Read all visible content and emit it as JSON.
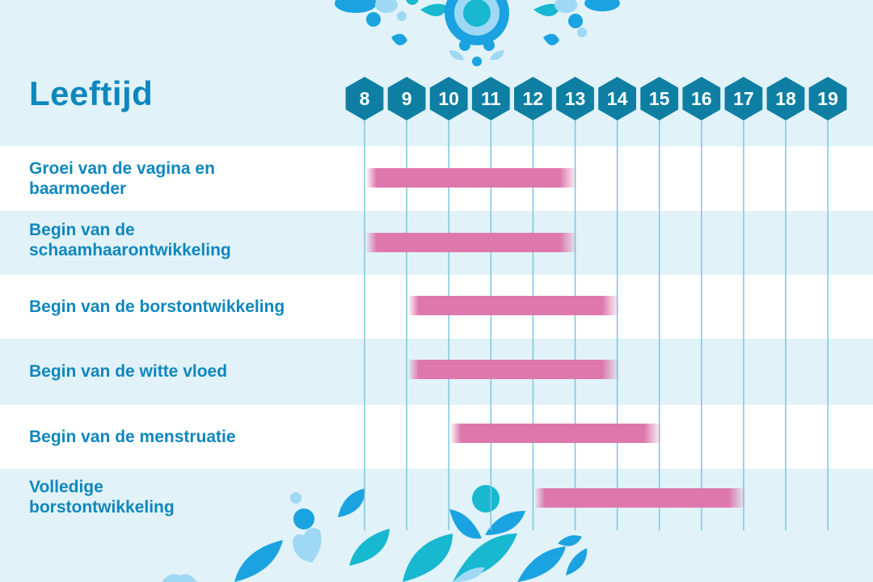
{
  "chart_data": {
    "type": "range-bar",
    "title": "Leeftijd",
    "x_ticks": [
      8,
      9,
      10,
      11,
      12,
      13,
      14,
      15,
      16,
      17,
      18,
      19
    ],
    "xlim": [
      8,
      19
    ],
    "grid": "vertical",
    "bar_color": "#dd77ac",
    "axis_color": "#0e7fa3",
    "rows": [
      {
        "label": "Groei van de vagina en baarmoeder",
        "start": 8,
        "end": 13
      },
      {
        "label": "Begin van de schaamhaarontwikkeling",
        "start": 8,
        "end": 13
      },
      {
        "label": "Begin van de borstontwikkeling",
        "start": 9,
        "end": 14
      },
      {
        "label": "Begin van de witte vloed",
        "start": 9,
        "end": 14
      },
      {
        "label": "Begin van de menstruatie",
        "start": 10,
        "end": 15
      },
      {
        "label": "Volledige borstontwikkeling",
        "start": 12,
        "end": 17
      }
    ]
  },
  "colors": {
    "background": "#e1f2f8",
    "row_white": "#ffffff",
    "text": "#0e87be",
    "grid": "#7dc6de"
  },
  "icons": [
    "flower-top-ornament",
    "leaf-bottom-ornament"
  ]
}
